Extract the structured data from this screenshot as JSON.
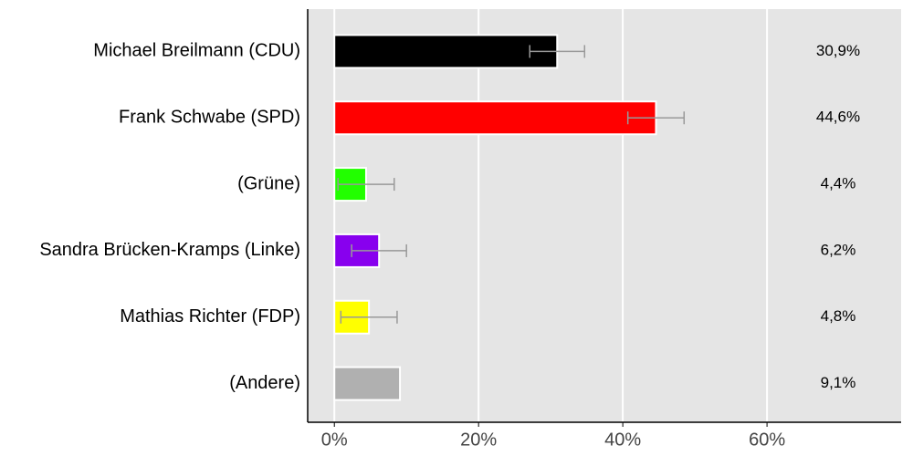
{
  "chart_data": {
    "type": "bar",
    "orientation": "horizontal",
    "categories": [
      "Michael Breilmann (CDU)",
      "Frank Schwabe (SPD)",
      "(Grüne)",
      "Sandra Brücken-Kramps (Linke)",
      "Mathias Richter (FDP)",
      "(Andere)"
    ],
    "values": [
      30.9,
      44.6,
      4.4,
      6.2,
      4.8,
      9.1
    ],
    "value_labels": [
      "30,9%",
      "44,6%",
      "4,4%",
      "6,2%",
      "4,8%",
      "9,1%"
    ],
    "errors": [
      3.8,
      3.9,
      3.9,
      3.8,
      3.9,
      null
    ],
    "colors": [
      "#000000",
      "#ff0000",
      "#22ff00",
      "#8800ee",
      "#ffff00",
      "#b0b0b0"
    ],
    "xlim": [
      -3.7,
      78.6
    ],
    "xticks": [
      {
        "value": 0,
        "label": "0%"
      },
      {
        "value": 20,
        "label": "20%"
      },
      {
        "value": 40,
        "label": "40%"
      },
      {
        "value": 60,
        "label": "60%"
      }
    ],
    "grid": true
  }
}
